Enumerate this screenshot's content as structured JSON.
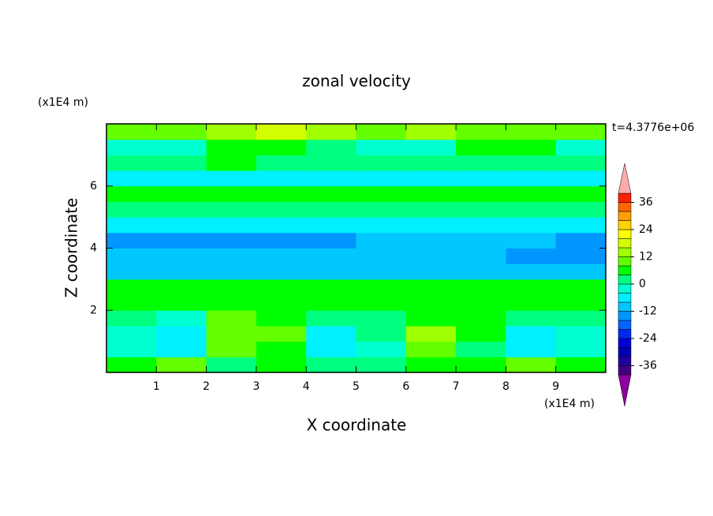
{
  "chart_data": {
    "type": "contour",
    "title": "zonal velocity",
    "xlabel": "X coordinate",
    "ylabel": "Z coordinate",
    "x_unit_label": "(x1E4 m)",
    "y_unit_label": "(x1E4 m)",
    "time_label": "t=4.3776e+06",
    "xlim": [
      0,
      10
    ],
    "ylim": [
      0,
      8
    ],
    "xticks": [
      1,
      2,
      3,
      4,
      5,
      6,
      7,
      8,
      9
    ],
    "yticks": [
      2,
      4,
      6
    ],
    "x": [
      0.5,
      1.5,
      2.5,
      3.5,
      4.5,
      5.5,
      6.5,
      7.5,
      8.5,
      9.5
    ],
    "y": [
      0.25,
      0.75,
      1.25,
      1.75,
      2.25,
      2.75,
      3.25,
      3.75,
      4.25,
      4.75,
      5.25,
      5.75,
      6.25,
      6.75,
      7.25,
      7.75
    ],
    "z": [
      [
        4,
        10,
        2,
        4,
        2,
        2,
        4,
        6,
        10,
        4
      ],
      [
        -2,
        -6,
        8,
        6,
        -6,
        -2,
        10,
        2,
        -8,
        -4
      ],
      [
        -4,
        -6,
        10,
        8,
        -6,
        0,
        12,
        4,
        -8,
        -2
      ],
      [
        2,
        -2,
        8,
        6,
        2,
        2,
        6,
        4,
        0,
        2
      ],
      [
        4,
        4,
        6,
        4,
        4,
        4,
        4,
        6,
        4,
        4
      ],
      [
        6,
        6,
        6,
        6,
        6,
        6,
        6,
        6,
        6,
        6
      ],
      [
        -10,
        -10,
        -10,
        -10,
        -10,
        -10,
        -10,
        -10,
        -10,
        -10
      ],
      [
        -10,
        -10,
        -10,
        -10,
        -10,
        -10,
        -10,
        -10,
        -14,
        -14
      ],
      [
        -14,
        -14,
        -14,
        -14,
        -14,
        -10,
        -10,
        -10,
        -10,
        -14
      ],
      [
        -8,
        -8,
        -8,
        -8,
        -8,
        -8,
        -8,
        -8,
        -8,
        -8
      ],
      [
        2,
        2,
        2,
        0,
        2,
        2,
        2,
        2,
        2,
        2
      ],
      [
        4,
        4,
        4,
        4,
        4,
        4,
        4,
        6,
        4,
        4
      ],
      [
        -6,
        -6,
        -6,
        -6,
        -6,
        -6,
        -6,
        -6,
        -6,
        -6
      ],
      [
        2,
        2,
        4,
        2,
        2,
        2,
        2,
        2,
        2,
        2
      ],
      [
        -4,
        -4,
        6,
        6,
        2,
        -4,
        -4,
        6,
        6,
        -4
      ],
      [
        8,
        8,
        12,
        16,
        12,
        8,
        12,
        8,
        8,
        8
      ]
    ],
    "colorbar": {
      "lim": [
        -40,
        40
      ],
      "ticks": [
        -36,
        -24,
        -12,
        0,
        12,
        24,
        36
      ],
      "step": 4,
      "colors": [
        "#40007f",
        "#2000a0",
        "#0000b4",
        "#0000dc",
        "#0028f0",
        "#0064ff",
        "#0096ff",
        "#00c8ff",
        "#00f0ff",
        "#00ffd0",
        "#00ff80",
        "#00ff00",
        "#64ff00",
        "#a0ff00",
        "#d2ff00",
        "#ffff00",
        "#ffd200",
        "#ffa000",
        "#ff6400",
        "#ff1e00"
      ],
      "under_color": "#8c00a0",
      "over_color": "#ffaaaa"
    }
  }
}
